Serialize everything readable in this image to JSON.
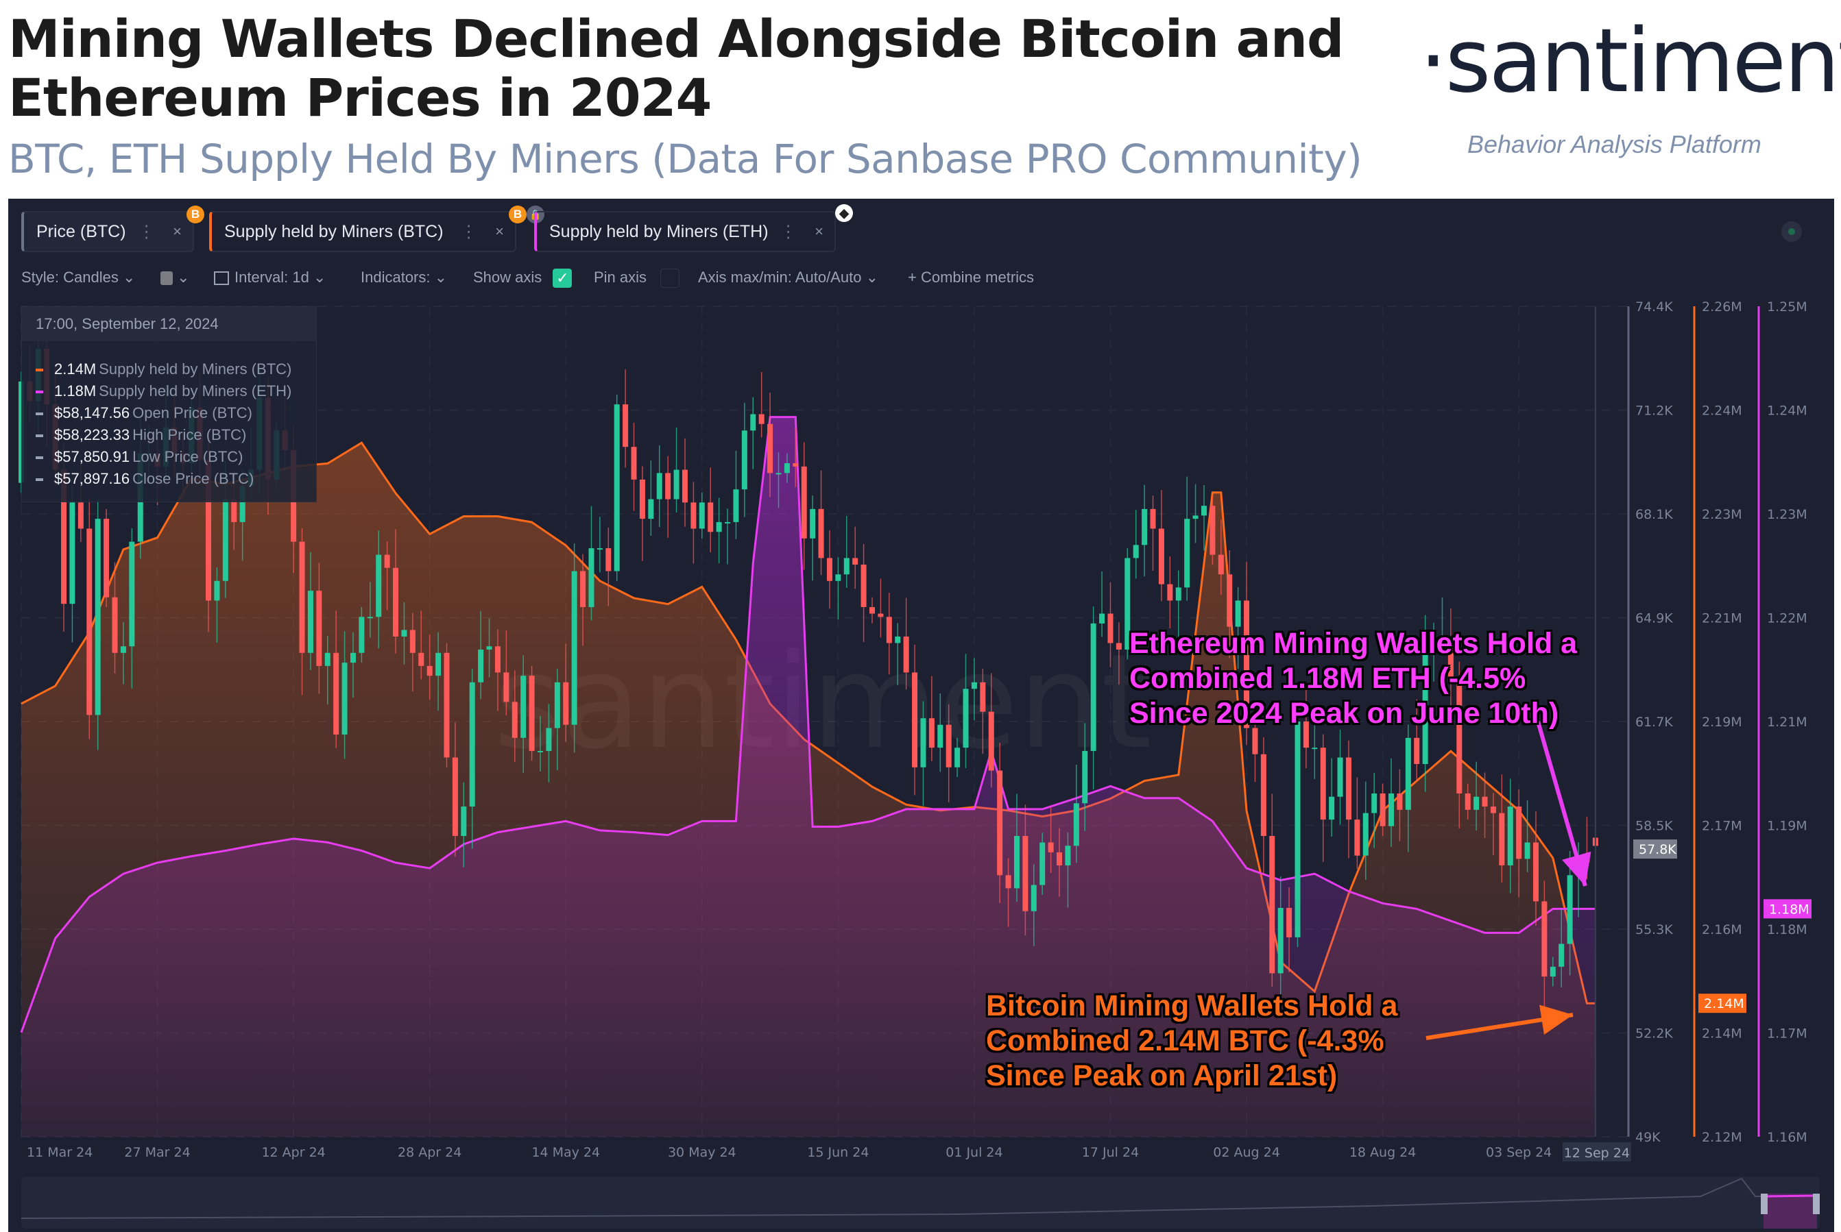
{
  "header": {
    "title_line1": "Mining Wallets Declined Alongside Bitcoin and",
    "title_line2": "Ethereum Prices in 2024",
    "subtitle": "BTC, ETH Supply Held By Miners (Data For Sanbase PRO Community)",
    "logo": "·santiment·",
    "tagline": "Behavior Analysis Platform"
  },
  "tabs": [
    {
      "label": "Price (BTC)",
      "coin": "B"
    },
    {
      "label": "Supply held by Miners (BTC)",
      "coin": "B"
    },
    {
      "label": "Supply held by Miners (ETH)",
      "coin": "ETH"
    }
  ],
  "toolbar": {
    "style": "Style: Candles",
    "interval": "Interval: 1d",
    "indicators": "Indicators:",
    "show_axis": "Show axis",
    "show_axis_checked": true,
    "pin_axis": "Pin axis",
    "pin_axis_checked": false,
    "axis_minmax": "Axis max/min: Auto/Auto",
    "combine": "Combine metrics",
    "check_mark": "✓",
    "plus": "+",
    "dots": "⋮",
    "close": "×",
    "chevron": "⌄"
  },
  "legend": {
    "datetime": "17:00, September 12, 2024",
    "rows": [
      {
        "value": "2.14M",
        "name": "Supply held by Miners (BTC)",
        "color": "#ff6a1a"
      },
      {
        "value": "1.18M",
        "name": "Supply held by Miners (ETH)",
        "color": "#e83cf0"
      },
      {
        "value": "$58,147.56",
        "name": "Open Price (BTC)",
        "color": "#9aa2b5"
      },
      {
        "value": "$58,223.33",
        "name": "High Price (BTC)",
        "color": "#9aa2b5"
      },
      {
        "value": "$57,850.91",
        "name": "Low Price (BTC)",
        "color": "#9aa2b5"
      },
      {
        "value": "$57,897.16",
        "name": "Close Price (BTC)",
        "color": "#9aa2b5"
      }
    ]
  },
  "annotations": {
    "eth": [
      "Ethereum Mining Wallets Hold a",
      "Combined 1.18M ETH (-4.5%",
      "Since 2024 Peak on June 10th)"
    ],
    "btc": [
      "Bitcoin Mining Wallets Hold a",
      "Combined 2.14M BTC (-4.3%",
      "Since Peak on April 21st)"
    ]
  },
  "watermark": "santiment",
  "colors": {
    "up": "#26c99a",
    "down": "#ff5a5a",
    "btc": "#ff6a1a",
    "eth": "#e83cf0",
    "bg": "#1c2030"
  },
  "chart_data": {
    "type": "candlestick+area",
    "title": "BTC, ETH Supply Held By Miners",
    "x_start_date": "11 Mar 24",
    "x_end_date": "12 Sep 24",
    "x_ticks": [
      {
        "label": "11 Mar 24",
        "day": 0
      },
      {
        "label": "27 Mar 24",
        "day": 16
      },
      {
        "label": "12 Apr 24",
        "day": 32
      },
      {
        "label": "28 Apr 24",
        "day": 48
      },
      {
        "label": "14 May 24",
        "day": 64
      },
      {
        "label": "30 May 24",
        "day": 80
      },
      {
        "label": "15 Jun 24",
        "day": 96
      },
      {
        "label": "01 Jul 24",
        "day": 112
      },
      {
        "label": "17 Jul 24",
        "day": 128
      },
      {
        "label": "02 Aug 24",
        "day": 144
      },
      {
        "label": "18 Aug 24",
        "day": 160
      },
      {
        "label": "03 Sep 24",
        "day": 176
      }
    ],
    "crosshair": {
      "label": "12 Sep 24",
      "day": 185
    },
    "price_axis": {
      "ticks": [
        "74.4K",
        "71.2K",
        "68.1K",
        "64.9K",
        "61.7K",
        "58.5K",
        "55.3K",
        "52.2K",
        "49K"
      ],
      "range_k": [
        49,
        74.4
      ],
      "current_label": "57.8K",
      "current": 57.8
    },
    "btc_axis": {
      "ticks": [
        "2.26M",
        "2.24M",
        "2.23M",
        "2.21M",
        "2.19M",
        "2.17M",
        "2.16M",
        "2.14M",
        "2.12M"
      ],
      "range_m": [
        2.12,
        2.26
      ],
      "current_label": "2.14M",
      "current": 2.1425
    },
    "eth_axis": {
      "ticks": [
        "1.25M",
        "1.24M",
        "1.23M",
        "1.22M",
        "1.21M",
        "1.19M",
        "1.18M",
        "1.17M",
        "1.16M"
      ],
      "range_m": [
        1.16,
        1.25
      ],
      "current_label": "1.18M",
      "current": 1.1847
    },
    "btc_price_close_k": [
      72.1,
      71.5,
      73.1,
      71.4,
      69.4,
      65.3,
      68.4,
      67.6,
      61.9,
      67.9,
      65.5,
      63.8,
      64.0,
      67.2,
      69.9,
      69.9,
      69.5,
      70.7,
      69.9,
      69.6,
      71.3,
      69.7,
      65.4,
      66.0,
      68.5,
      67.8,
      68.9,
      69.4,
      71.6,
      69.1,
      70.6,
      70.0,
      67.2,
      63.8,
      65.7,
      63.4,
      63.8,
      61.3,
      63.5,
      63.8,
      64.9,
      64.9,
      66.8,
      66.4,
      64.3,
      64.5,
      63.8,
      63.4,
      63.1,
      63.8,
      60.6,
      58.2,
      59.1,
      62.9,
      63.9,
      64.0,
      63.2,
      62.3,
      61.2,
      63.1,
      60.8,
      60.8,
      61.5,
      62.9,
      61.6,
      66.3,
      65.2,
      67.0,
      67.0,
      66.3,
      71.4,
      70.1,
      69.1,
      67.9,
      68.5,
      69.3,
      68.5,
      69.4,
      68.4,
      67.6,
      68.4,
      67.5,
      67.8,
      67.8,
      68.8,
      70.6,
      71.1,
      70.8,
      69.3,
      69.3,
      69.6,
      69.5,
      67.3,
      68.2,
      66.7,
      66.0,
      66.2,
      66.7,
      66.5,
      65.2,
      65.0,
      64.9,
      64.1,
      64.3,
      63.2,
      60.3,
      61.8,
      60.9,
      61.6,
      60.3,
      60.9,
      62.7,
      62.9,
      62.0,
      60.2,
      57.0,
      56.6,
      58.2,
      55.9,
      56.7,
      58.0,
      57.7,
      57.3,
      57.9,
      59.2,
      60.8,
      64.7,
      65.0,
      64.1,
      63.9,
      66.7,
      67.1,
      68.2,
      67.6,
      65.9,
      65.4,
      65.8,
      67.9,
      68.0,
      68.3,
      66.8,
      66.2,
      64.6,
      65.4,
      61.5,
      60.7,
      58.2,
      54.0,
      56.0,
      55.1,
      61.7,
      60.9,
      60.9,
      58.7,
      59.4,
      60.6,
      58.7,
      57.6,
      58.9,
      59.5,
      58.5,
      59.5,
      59.0,
      61.2,
      60.4,
      64.1,
      64.2,
      64.2,
      62.9,
      59.5,
      59.0,
      59.4,
      59.1,
      58.9,
      57.3,
      59.1,
      57.5,
      58.0,
      56.2,
      53.9,
      54.2,
      54.9,
      57.0,
      57.6,
      57.4,
      57.897
    ],
    "btc_price_first_open_k": 69.0,
    "btc_price_last_ohlc_k": [
      58.148,
      58.223,
      57.851,
      57.897
    ],
    "btc_miner_supply_m": {
      "day": [
        0,
        4,
        8,
        12,
        16,
        20,
        24,
        28,
        32,
        36,
        40,
        44,
        48,
        52,
        56,
        60,
        64,
        68,
        72,
        76,
        80,
        84,
        88,
        92,
        96,
        100,
        104,
        108,
        112,
        116,
        120,
        124,
        128,
        132,
        136,
        140,
        141,
        144,
        148,
        152,
        156,
        160,
        164,
        168,
        172,
        176,
        180,
        184,
        185
      ],
      "values": [
        2.193,
        2.196,
        2.205,
        2.219,
        2.221,
        2.231,
        2.23,
        2.2315,
        2.233,
        2.2335,
        2.237,
        2.2285,
        2.2216,
        2.2246,
        2.2246,
        2.2236,
        2.2197,
        2.2137,
        2.2108,
        2.2098,
        2.2127,
        2.2038,
        2.193,
        2.187,
        2.183,
        2.179,
        2.176,
        2.175,
        2.1756,
        2.175,
        2.174,
        2.175,
        2.177,
        2.18,
        2.181,
        2.2286,
        2.2286,
        2.175,
        2.1495,
        2.1445,
        2.161,
        2.175,
        2.18,
        2.185,
        2.18,
        2.175,
        2.167,
        2.1425,
        2.1425
      ]
    },
    "eth_miner_supply_m": {
      "day": [
        0,
        4,
        8,
        12,
        16,
        20,
        24,
        28,
        32,
        36,
        40,
        44,
        48,
        52,
        56,
        60,
        64,
        68,
        72,
        76,
        80,
        84,
        86,
        88,
        91,
        93,
        96,
        100,
        104,
        108,
        112,
        114,
        116,
        120,
        124,
        128,
        132,
        136,
        140,
        144,
        148,
        152,
        156,
        160,
        164,
        168,
        172,
        176,
        180,
        184,
        185
      ],
      "values": [
        1.1713,
        1.1815,
        1.186,
        1.1885,
        1.1897,
        1.1904,
        1.191,
        1.1917,
        1.1923,
        1.1919,
        1.191,
        1.1897,
        1.1891,
        1.1917,
        1.193,
        1.1936,
        1.1942,
        1.1932,
        1.193,
        1.1927,
        1.1942,
        1.1942,
        1.2222,
        1.238,
        1.238,
        1.1936,
        1.1936,
        1.1942,
        1.1955,
        1.1955,
        1.1955,
        1.2018,
        1.1955,
        1.1955,
        1.1967,
        1.198,
        1.1967,
        1.1967,
        1.1942,
        1.1891,
        1.1878,
        1.1885,
        1.1866,
        1.1853,
        1.1847,
        1.1834,
        1.1821,
        1.1821,
        1.1847,
        1.1847,
        1.1847
      ]
    }
  }
}
